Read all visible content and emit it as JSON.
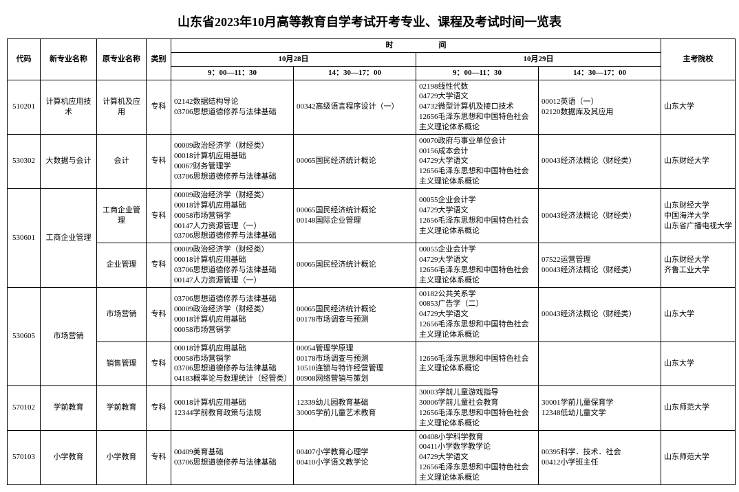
{
  "title": "山东省2023年10月高等教育自学考试开考专业、课程及考试时间一览表",
  "headers": {
    "code": "代码",
    "new_major": "新专业名称",
    "orig_major": "原专业名称",
    "category": "类别",
    "time_group": "时　　　　　　间",
    "host": "主考院校",
    "day1": "10月28日",
    "day2": "10月29日",
    "am": "9：00—11：30",
    "pm": "14：30—17：00"
  },
  "rows": [
    {
      "code": "510201",
      "new_major": "计算机应用技术",
      "orig_major": "计算机及应用",
      "category": "专科",
      "d1am": "02142数据结构导论\n03706思想道德修养与法律基础",
      "d1pm": "00342高级语言程序设计（一）",
      "d2am": "02198线性代数\n04729大学语文\n04732微型计算机及接口技术\n12656毛泽东思想和中国特色社会主义理论体系概论",
      "d2pm": "00012英语（一）\n02120数据库及其应用",
      "host": "山东大学"
    },
    {
      "code": "530302",
      "new_major": "大数据与会计",
      "orig_major": "会计",
      "category": "专科",
      "d1am": "00009政治经济学（财经类）\n00018计算机应用基础\n00067财务管理学\n03706思想道德修养与法律基础",
      "d1pm": "00065国民经济统计概论",
      "d2am": "00070政府与事业单位会计\n00156成本会计\n04729大学语文\n12656毛泽东思想和中国特色社会主义理论体系概论",
      "d2pm": "00043经济法概论（财经类）",
      "host": "山东财经大学"
    },
    {
      "code": "530601",
      "code_rowspan": 2,
      "new_major": "工商企业管理",
      "new_major_rowspan": 2,
      "orig_major": "工商企业管理",
      "category": "专科",
      "d1am": "00009政治经济学（财经类）\n00018计算机应用基础\n00058市场营销学\n00147人力资源管理（一）\n03706思想道德修养与法律基础",
      "d1pm": "00065国民经济统计概论\n00148国际企业管理",
      "d2am": "00055企业会计学\n04729大学语文\n12656毛泽东思想和中国特色社会主义理论体系概论",
      "d2pm": "00043经济法概论（财经类）",
      "host": "山东财经大学\n中国海洋大学\n山东省广播电视大学"
    },
    {
      "skip_code": true,
      "skip_new_major": true,
      "orig_major": "企业管理",
      "category": "专科",
      "d1am": "00009政治经济学（财经类）\n00018计算机应用基础\n03706思想道德修养与法律基础\n00147人力资源管理（一）",
      "d1pm": "00065国民经济统计概论",
      "d2am": "00055企业会计学\n04729大学语文\n12656毛泽东思想和中国特色社会主义理论体系概论",
      "d2pm": "07522运营管理\n00043经济法概论（财经类）",
      "host": "山东财经大学\n齐鲁工业大学"
    },
    {
      "code": "530605",
      "code_rowspan": 2,
      "new_major": "市场营销",
      "new_major_rowspan": 2,
      "orig_major": "市场营销",
      "category": "专科",
      "d1am": "03706思想道德修养与法律基础\n00009政治经济学（财经类）\n00018计算机应用基础\n00058市场营销学",
      "d1pm": "00065国民经济统计概论\n00178市场调查与预测",
      "d2am": "00182公共关系学\n00853广告学（二）\n04729大学语文\n12656毛泽东思想和中国特色社会主义理论体系概论",
      "d2pm": "00043经济法概论（财经类）",
      "host": "山东大学"
    },
    {
      "skip_code": true,
      "skip_new_major": true,
      "orig_major": "销售管理",
      "category": "专科",
      "d1am": "00018计算机应用基础\n00058市场营销学\n03706思想道德修养与法律基础\n04183概率论与数理统计（经管类）",
      "d1pm": "00054管理学原理\n00178市场调查与预测\n10510连锁与特许经营管理\n00908网络营销与策划",
      "d2am": "12656毛泽东思想和中国特色社会主义理论体系概论",
      "d2pm": "",
      "host": "山东大学"
    },
    {
      "code": "570102",
      "new_major": "学前教育",
      "orig_major": "学前教育",
      "category": "专科",
      "d1am": "00018计算机应用基础\n12344学前教育政策与法规",
      "d1pm": "12339幼儿园教育基础\n30005学前儿童艺术教育",
      "d2am": "30003学前儿童游戏指导\n30006学前儿童社会教育\n12656毛泽东思想和中国特色社会主义理论体系概论",
      "d2pm": "30001学前儿童保育学\n12348低幼儿童文学",
      "host": "山东师范大学"
    },
    {
      "code": "570103",
      "new_major": "小学教育",
      "orig_major": "小学教育",
      "category": "专科",
      "d1am": "00409美育基础\n03706思想道德修养与法律基础",
      "d1pm": "00407小学教育心理学\n00410小学语文教学论",
      "d2am": "00408小学科学教育\n00411小学数学教学论\n04729大学语文\n12656毛泽东思想和中国特色社会主义理论体系概论",
      "d2pm": "00395科学．技术．社会\n00412小学班主任",
      "host": "山东师范大学"
    }
  ]
}
